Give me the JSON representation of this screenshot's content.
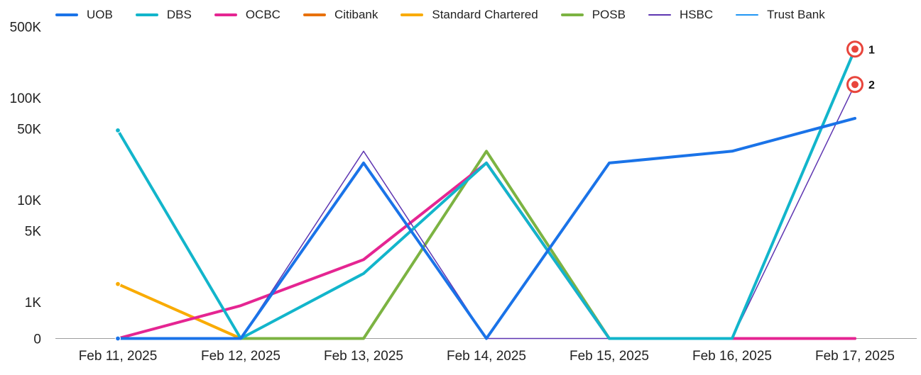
{
  "chart_data": {
    "type": "line",
    "title": "",
    "xlabel": "",
    "ylabel": "",
    "y_scale": "symlog",
    "grid": false,
    "legend_position": "top-left",
    "categories": [
      "Feb 11, 2025",
      "Feb 12, 2025",
      "Feb 13, 2025",
      "Feb 14, 2025",
      "Feb 15, 2025",
      "Feb 16, 2025",
      "Feb 17, 2025"
    ],
    "y_ticks": [
      {
        "value": 0,
        "label": "0"
      },
      {
        "value": 1000,
        "label": "1K"
      },
      {
        "value": 5000,
        "label": "5K"
      },
      {
        "value": 10000,
        "label": "10K"
      },
      {
        "value": 50000,
        "label": "50K"
      },
      {
        "value": 100000,
        "label": "100K"
      },
      {
        "value": 500000,
        "label": "500K"
      }
    ],
    "series": [
      {
        "name": "UOB",
        "color": "#1a73e8",
        "width": 4,
        "values": [
          0,
          0,
          23000,
          0,
          23000,
          30000,
          63000
        ]
      },
      {
        "name": "DBS",
        "color": "#12b5cb",
        "width": 4,
        "values": [
          48000,
          0,
          1900,
          23000,
          0,
          0,
          300000
        ]
      },
      {
        "name": "OCBC",
        "color": "#e52592",
        "width": 4,
        "values": [
          0,
          900,
          2600,
          23000,
          0,
          0,
          0
        ]
      },
      {
        "name": "Citibank",
        "color": "#e8710a",
        "width": 4,
        "values": [
          null,
          null,
          null,
          null,
          null,
          null,
          null
        ]
      },
      {
        "name": "Standard Chartered",
        "color": "#f9ab00",
        "width": 4,
        "values": [
          1500,
          0,
          null,
          null,
          null,
          null,
          null
        ]
      },
      {
        "name": "POSB",
        "color": "#7cb342",
        "width": 4,
        "values": [
          0,
          0,
          0,
          30000,
          0,
          0,
          0
        ]
      },
      {
        "name": "HSBC",
        "color": "#5e35b1",
        "width": 1.5,
        "values": [
          0,
          0,
          30000,
          0,
          0,
          0,
          135000
        ]
      },
      {
        "name": "Trust Bank",
        "color": "#2196f3",
        "width": 1.5,
        "values": [
          null,
          null,
          null,
          null,
          null,
          null,
          null
        ]
      }
    ],
    "annotations": [
      {
        "label": "1",
        "x": "Feb 17, 2025",
        "y": 300000
      },
      {
        "label": "2",
        "x": "Feb 17, 2025",
        "y": 135000
      }
    ]
  }
}
